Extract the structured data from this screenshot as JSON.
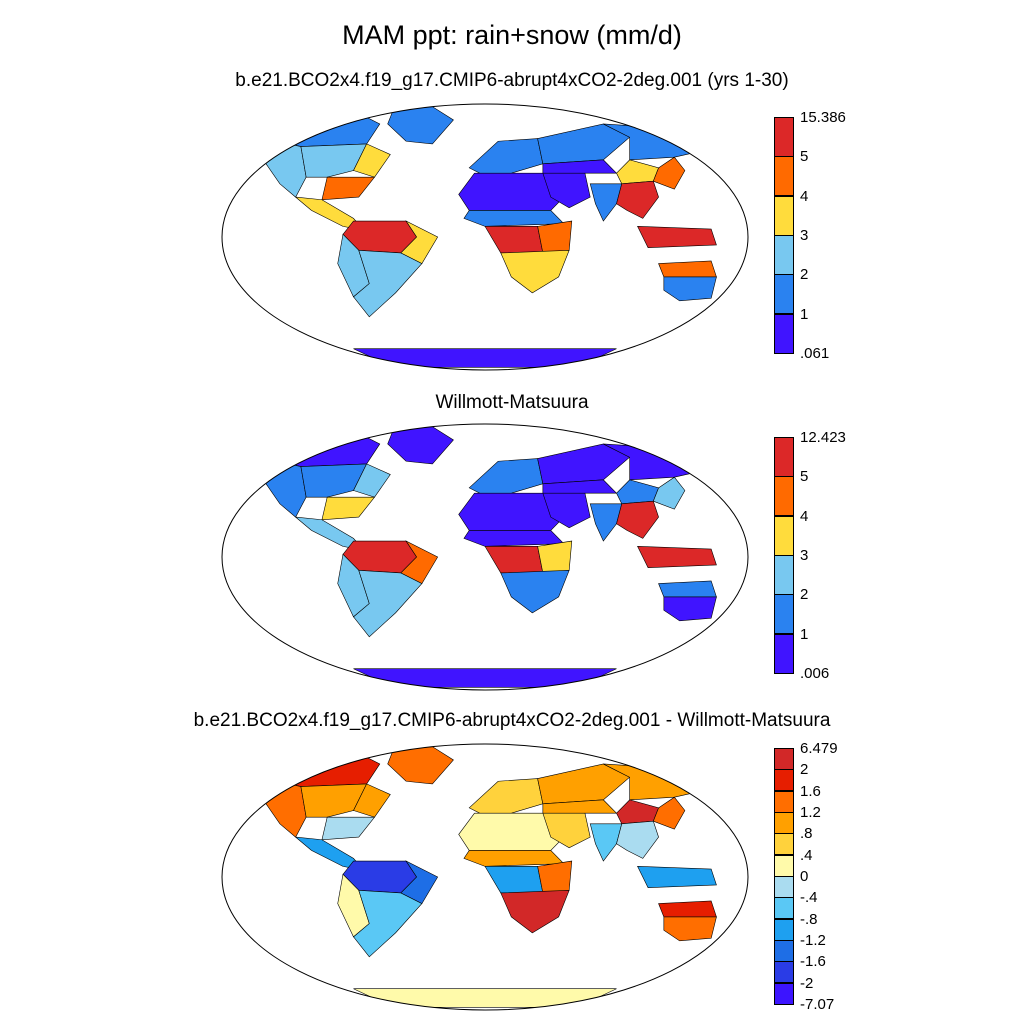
{
  "title": "MAM ppt: rain+snow (mm/d)",
  "palettes": {
    "abs": [
      "#4014ff",
      "#2a82f0",
      "#78c8f0",
      "#ffdc3c",
      "#ff6a00",
      "#dc2828"
    ],
    "diff": [
      "#3c14ff",
      "#2a3ce6",
      "#1e6ee6",
      "#1ea0f0",
      "#5ac8f5",
      "#aadcf0",
      "#fffaaa",
      "#ffd23c",
      "#ffa000",
      "#ff6e00",
      "#e61e00",
      "#d22828"
    ]
  },
  "colors": {
    "land_background": "#ffffff",
    "coastline": "#000000",
    "frame": "#000000"
  },
  "panels": [
    {
      "id": "model",
      "title": "b.e21.BCO2x4.f19_g17.CMIP6-abrupt4xCO2-2deg.001 (yrs 1-30)",
      "colorbar": {
        "top_label": "15.386",
        "levels": [
          "5",
          "4",
          "3",
          "2",
          "1"
        ],
        "bottom_label": ".061"
      },
      "regions": {
        "na_north": 1,
        "na_mid": 2,
        "na_east": 3,
        "na_west": 2,
        "na_southeast": 4,
        "central_america": 3,
        "amazon": 5,
        "brazil_east": 3,
        "andes": 2,
        "south_america_south": 2,
        "sahara": 0,
        "sahel": 1,
        "congo": 5,
        "east_africa": 4,
        "southern_africa": 3,
        "europe": 1,
        "russia": 1,
        "siberia": 1,
        "middle_east": 0,
        "central_asia": 0,
        "india": 1,
        "tibet": 3,
        "east_china": 4,
        "se_asia": 5,
        "indonesia": 5,
        "australia_interior": 1,
        "australia_north": 4,
        "greenland": 1,
        "antarctica": 0
      }
    },
    {
      "id": "obs",
      "title": "Willmott-Matsuura",
      "colorbar": {
        "top_label": "12.423",
        "levels": [
          "5",
          "4",
          "3",
          "2",
          "1"
        ],
        "bottom_label": ".006"
      },
      "regions": {
        "na_north": 0,
        "na_mid": 1,
        "na_east": 2,
        "na_west": 1,
        "na_southeast": 3,
        "central_america": 2,
        "amazon": 5,
        "brazil_east": 4,
        "andes": 2,
        "south_america_south": 2,
        "sahara": 0,
        "sahel": 0,
        "congo": 5,
        "east_africa": 3,
        "southern_africa": 1,
        "europe": 1,
        "russia": 0,
        "siberia": 0,
        "middle_east": 0,
        "central_asia": 0,
        "india": 1,
        "tibet": 1,
        "east_china": 2,
        "se_asia": 5,
        "indonesia": 5,
        "australia_interior": 0,
        "australia_north": 1,
        "greenland": 0,
        "antarctica": 0
      }
    },
    {
      "id": "diff",
      "title": "b.e21.BCO2x4.f19_g17.CMIP6-abrupt4xCO2-2deg.001 - Willmott-Matsuura",
      "colorbar": {
        "top_label": "6.479",
        "levels": [
          "2",
          "1.6",
          "1.2",
          ".8",
          ".4",
          "0",
          "-.4",
          "-.8",
          "-1.2",
          "-1.6",
          "-2"
        ],
        "bottom_label": "-7.07"
      },
      "regions": {
        "na_north": 10,
        "na_mid": 8,
        "na_east": 8,
        "na_west": 9,
        "na_southeast": 5,
        "central_america": 3,
        "amazon": 1,
        "brazil_east": 2,
        "andes": 6,
        "south_america_south": 4,
        "sahara": 6,
        "sahel": 8,
        "congo": 3,
        "east_africa": 9,
        "southern_africa": 11,
        "europe": 7,
        "russia": 8,
        "siberia": 8,
        "middle_east": 7,
        "central_asia": 8,
        "india": 4,
        "tibet": 11,
        "east_china": 9,
        "se_asia": 5,
        "indonesia": 3,
        "australia_interior": 9,
        "australia_north": 10,
        "greenland": 9,
        "antarctica": 6
      }
    }
  ]
}
